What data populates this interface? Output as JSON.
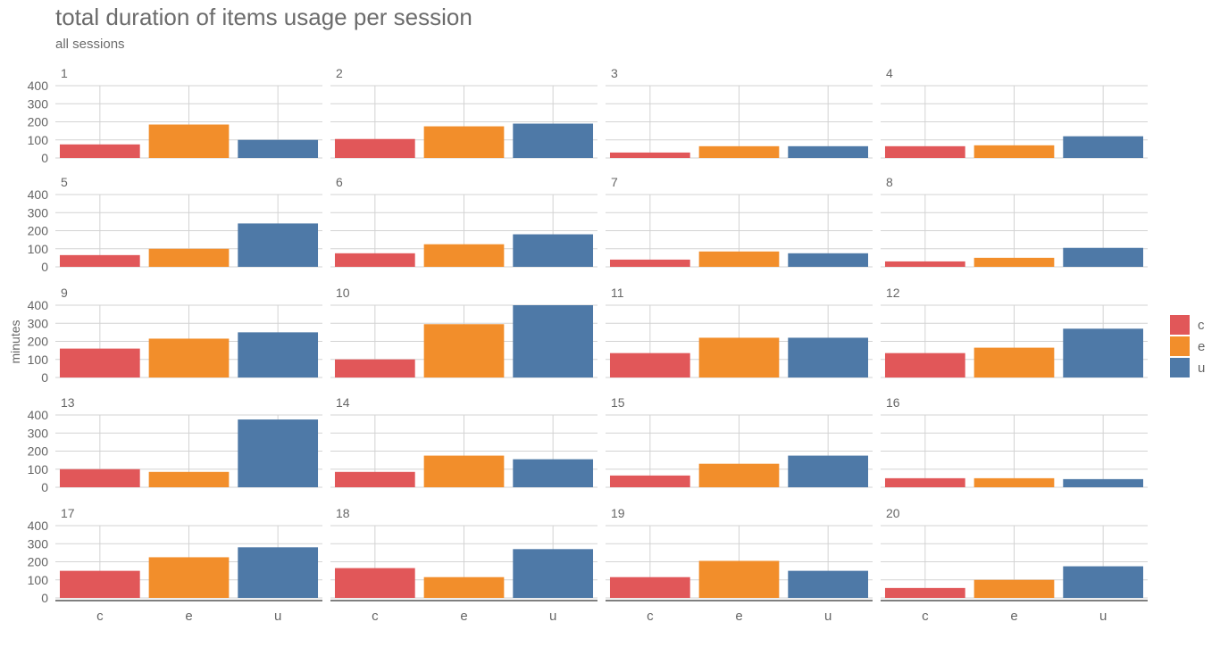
{
  "title": "total duration of items usage per session",
  "subtitle": "all sessions",
  "chart_data": {
    "type": "bar",
    "facet_by": "session",
    "facet_layout": {
      "columns": 4,
      "rows": 5
    },
    "categories": [
      "c",
      "e",
      "u"
    ],
    "xlabel": "",
    "ylabel": "minutes",
    "ylim": [
      0,
      400
    ],
    "yticks": [
      0,
      100,
      200,
      300,
      400
    ],
    "grid": true,
    "legend": {
      "position": "right",
      "entries": [
        {
          "label": "c",
          "color": "#E15759"
        },
        {
          "label": "e",
          "color": "#F28E2B"
        },
        {
          "label": "u",
          "color": "#4E79A7"
        }
      ]
    },
    "panels": [
      {
        "label": "1",
        "values": [
          75,
          185,
          100
        ]
      },
      {
        "label": "2",
        "values": [
          105,
          175,
          190
        ]
      },
      {
        "label": "3",
        "values": [
          30,
          65,
          65
        ]
      },
      {
        "label": "4",
        "values": [
          65,
          70,
          120
        ]
      },
      {
        "label": "5",
        "values": [
          65,
          100,
          240
        ]
      },
      {
        "label": "6",
        "values": [
          75,
          125,
          180
        ]
      },
      {
        "label": "7",
        "values": [
          40,
          85,
          75
        ]
      },
      {
        "label": "8",
        "values": [
          30,
          50,
          105
        ]
      },
      {
        "label": "9",
        "values": [
          160,
          215,
          250
        ]
      },
      {
        "label": "10",
        "values": [
          100,
          295,
          400
        ]
      },
      {
        "label": "11",
        "values": [
          135,
          220,
          220
        ]
      },
      {
        "label": "12",
        "values": [
          135,
          165,
          270
        ]
      },
      {
        "label": "13",
        "values": [
          100,
          85,
          375
        ]
      },
      {
        "label": "14",
        "values": [
          85,
          175,
          155
        ]
      },
      {
        "label": "15",
        "values": [
          65,
          130,
          175
        ]
      },
      {
        "label": "16",
        "values": [
          50,
          50,
          45
        ]
      },
      {
        "label": "17",
        "values": [
          150,
          225,
          280
        ]
      },
      {
        "label": "18",
        "values": [
          165,
          115,
          270
        ]
      },
      {
        "label": "19",
        "values": [
          115,
          205,
          150
        ]
      },
      {
        "label": "20",
        "values": [
          55,
          100,
          175
        ]
      }
    ]
  }
}
